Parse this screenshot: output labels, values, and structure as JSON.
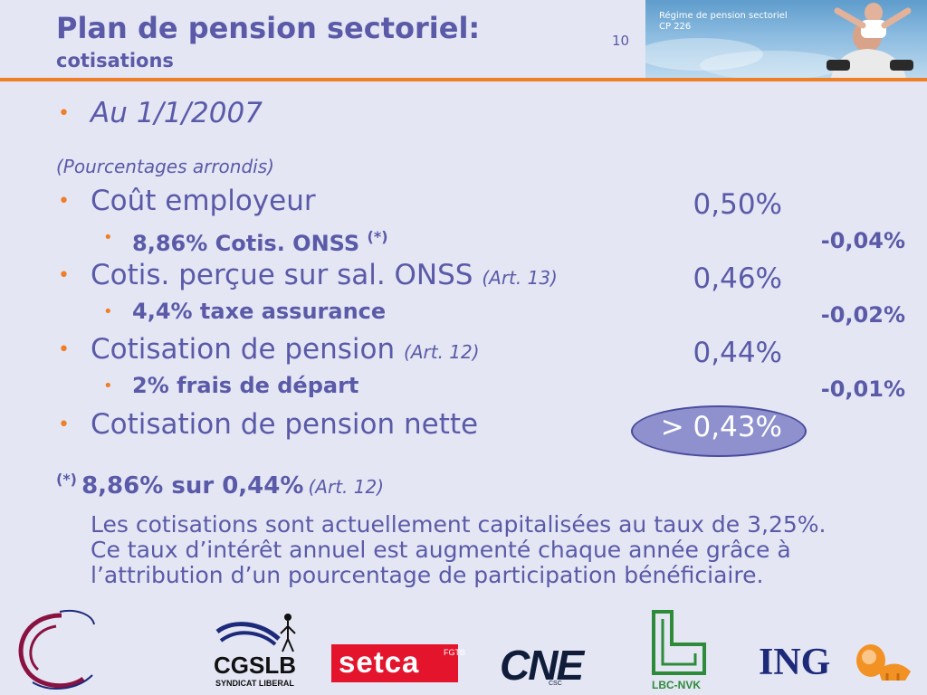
{
  "header": {
    "title": "Plan de pension sectoriel:",
    "subtitle": "cotisations",
    "page_number": "10",
    "photo_caption": [
      "Régime de pension sectoriel",
      "CP 226"
    ]
  },
  "content": {
    "date_bullet": "Au 1/1/2007",
    "rounding_note": "(Pourcentages arrondis)",
    "rows": [
      {
        "label": "Coût employeur",
        "ref": "",
        "value": "0,50%",
        "sub": {
          "label": "8,86% Cotis. ONSS",
          "mark": "(*)",
          "value": "-0,04%"
        }
      },
      {
        "label": "Cotis. perçue sur sal. ONSS",
        "ref": "(Art. 13)",
        "value": "0,46%",
        "sub": {
          "label": "4,4% taxe assurance",
          "mark": "",
          "value": "-0,02%"
        }
      },
      {
        "label": "Cotisation de pension",
        "ref": "(Art. 12)",
        "value": "0,44%",
        "sub": {
          "label": "2% frais de départ",
          "mark": "",
          "value": "-0,01%"
        }
      },
      {
        "label": "Cotisation de pension nette",
        "ref": "",
        "value": "> 0,43%"
      }
    ],
    "footnote": {
      "mark": "(*)",
      "text": "8,86% sur 0,44%",
      "ref": "(Art. 12)"
    },
    "paragraph": "Les cotisations sont actuellement capitalisées au taux de 3,25%. Ce taux d’intérêt annuel est augmenté chaque année grâce à l’attribution d’un pourcentage de participation bénéficiaire."
  },
  "logos": {
    "cgslb": {
      "name": "CGSLB",
      "sub": "SYNDICAT LIBERAL"
    },
    "setca": {
      "name": "setca",
      "side": "FGTB"
    },
    "cne": {
      "name": "CNE",
      "sub": "CSC"
    },
    "lbc": {
      "name": "LBC-NVK"
    },
    "ing": {
      "name": "ING"
    }
  },
  "colors": {
    "text": "#5a5aa8",
    "accent": "#ef7e27",
    "background": "#e4e6f4",
    "highlight": "#8f91cf"
  }
}
